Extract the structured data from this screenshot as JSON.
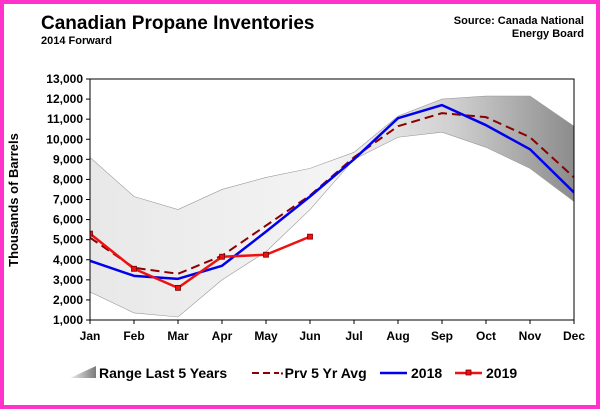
{
  "chart_data": {
    "type": "line",
    "title": "Canadian Propane Inventories",
    "subtitle": "2014 Forward",
    "source_line1": "Source:  Canada National",
    "source_line2": "Energy Board",
    "ylabel": "Thousands of Barrels",
    "xlabel": "",
    "ylim": [
      1000,
      13000
    ],
    "y_ticks": [
      "1,000",
      "2,000",
      "3,000",
      "4,000",
      "5,000",
      "6,000",
      "7,000",
      "8,000",
      "9,000",
      "10,000",
      "11,000",
      "12,000",
      "13,000"
    ],
    "y_tick_values": [
      1000,
      2000,
      3000,
      4000,
      5000,
      6000,
      7000,
      8000,
      9000,
      10000,
      11000,
      12000,
      13000
    ],
    "categories": [
      "Jan",
      "Feb",
      "Mar",
      "Apr",
      "May",
      "Jun",
      "Jul",
      "Aug",
      "Sep",
      "Oct",
      "Nov",
      "Dec"
    ],
    "grid": false,
    "legend_position": "bottom",
    "range": {
      "name": "Range Last 5 Years",
      "low": [
        2400,
        1350,
        1150,
        3000,
        4400,
        6500,
        9000,
        10100,
        10350,
        9600,
        8550,
        6900
      ],
      "high": [
        9100,
        7150,
        6500,
        7500,
        8100,
        8550,
        9350,
        11150,
        12000,
        12150,
        12150,
        10650
      ],
      "color": "#b0b0b0"
    },
    "series": [
      {
        "name": "Prv 5 Yr Avg",
        "values": [
          5100,
          3600,
          3300,
          4200,
          5700,
          7200,
          9100,
          10650,
          11300,
          11100,
          10100,
          8100
        ],
        "color": "#8b0000",
        "style": "dashed"
      },
      {
        "name": "2018",
        "values": [
          3950,
          3200,
          3050,
          3700,
          5400,
          7150,
          9000,
          11050,
          11700,
          10700,
          9500,
          7350
        ],
        "color": "#0000ee",
        "style": "solid"
      },
      {
        "name": "2019",
        "values": [
          5300,
          3550,
          2600,
          4150,
          4250,
          5150,
          null,
          null,
          null,
          null,
          null,
          null
        ],
        "color": "#ee1111",
        "style": "solid-markers"
      }
    ]
  }
}
